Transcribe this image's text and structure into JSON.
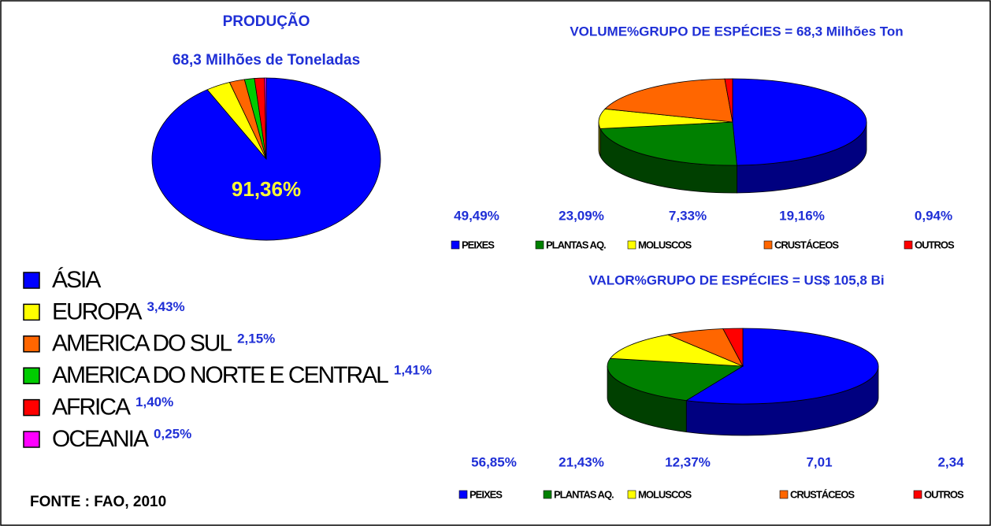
{
  "chart_data": [
    {
      "type": "pie",
      "title": "PRODUÇÃO",
      "subtitle": "68,3 Milhões de Toneladas",
      "categories": [
        "ÁSIA",
        "EUROPA",
        "AMERICA DO SUL",
        "AMERICA DO NORTE E CENTRAL",
        "AFRICA",
        "OCEANIA"
      ],
      "values": [
        91.36,
        3.43,
        2.15,
        1.41,
        1.4,
        0.25
      ],
      "value_labels": [
        "91,36%",
        "3,43%",
        "2,15%",
        "1,41%",
        "1,40%",
        "0,25%"
      ],
      "colors": [
        "#0000ff",
        "#ffff00",
        "#ff6600",
        "#00cc00",
        "#ff0000",
        "#ff00ff"
      ]
    },
    {
      "type": "pie3d",
      "title": "VOLUME%GRUPO DE ESPÉCIES = 68,3 Milhões Ton",
      "categories": [
        "PEIXES",
        "PLANTAS AQ.",
        "MOLUSCOS",
        "CRUSTÁCEOS",
        "OUTROS"
      ],
      "values": [
        49.49,
        23.09,
        7.33,
        19.16,
        0.94
      ],
      "value_labels": [
        "49,49%",
        "23,09%",
        "7,33%",
        "19,16%",
        "0,94%"
      ],
      "colors": [
        "#0000ff",
        "#008000",
        "#ffff00",
        "#ff6600",
        "#ff0000"
      ]
    },
    {
      "type": "pie3d",
      "title": "VALOR%GRUPO DE ESPÉCIES = US$ 105,8 Bi",
      "categories": [
        "PEIXES",
        "PLANTAS AQ.",
        "MOLUSCOS",
        "CRUSTÁCEOS",
        "OUTROS"
      ],
      "values": [
        56.85,
        21.43,
        12.37,
        7.01,
        2.34
      ],
      "value_labels": [
        "56,85%",
        "21,43%",
        "12,37%",
        "7,01",
        "2,34"
      ],
      "colors": [
        "#0000ff",
        "#008000",
        "#ffff00",
        "#ff6600",
        "#ff0000"
      ]
    }
  ],
  "source": "FONTE : FAO, 2010"
}
